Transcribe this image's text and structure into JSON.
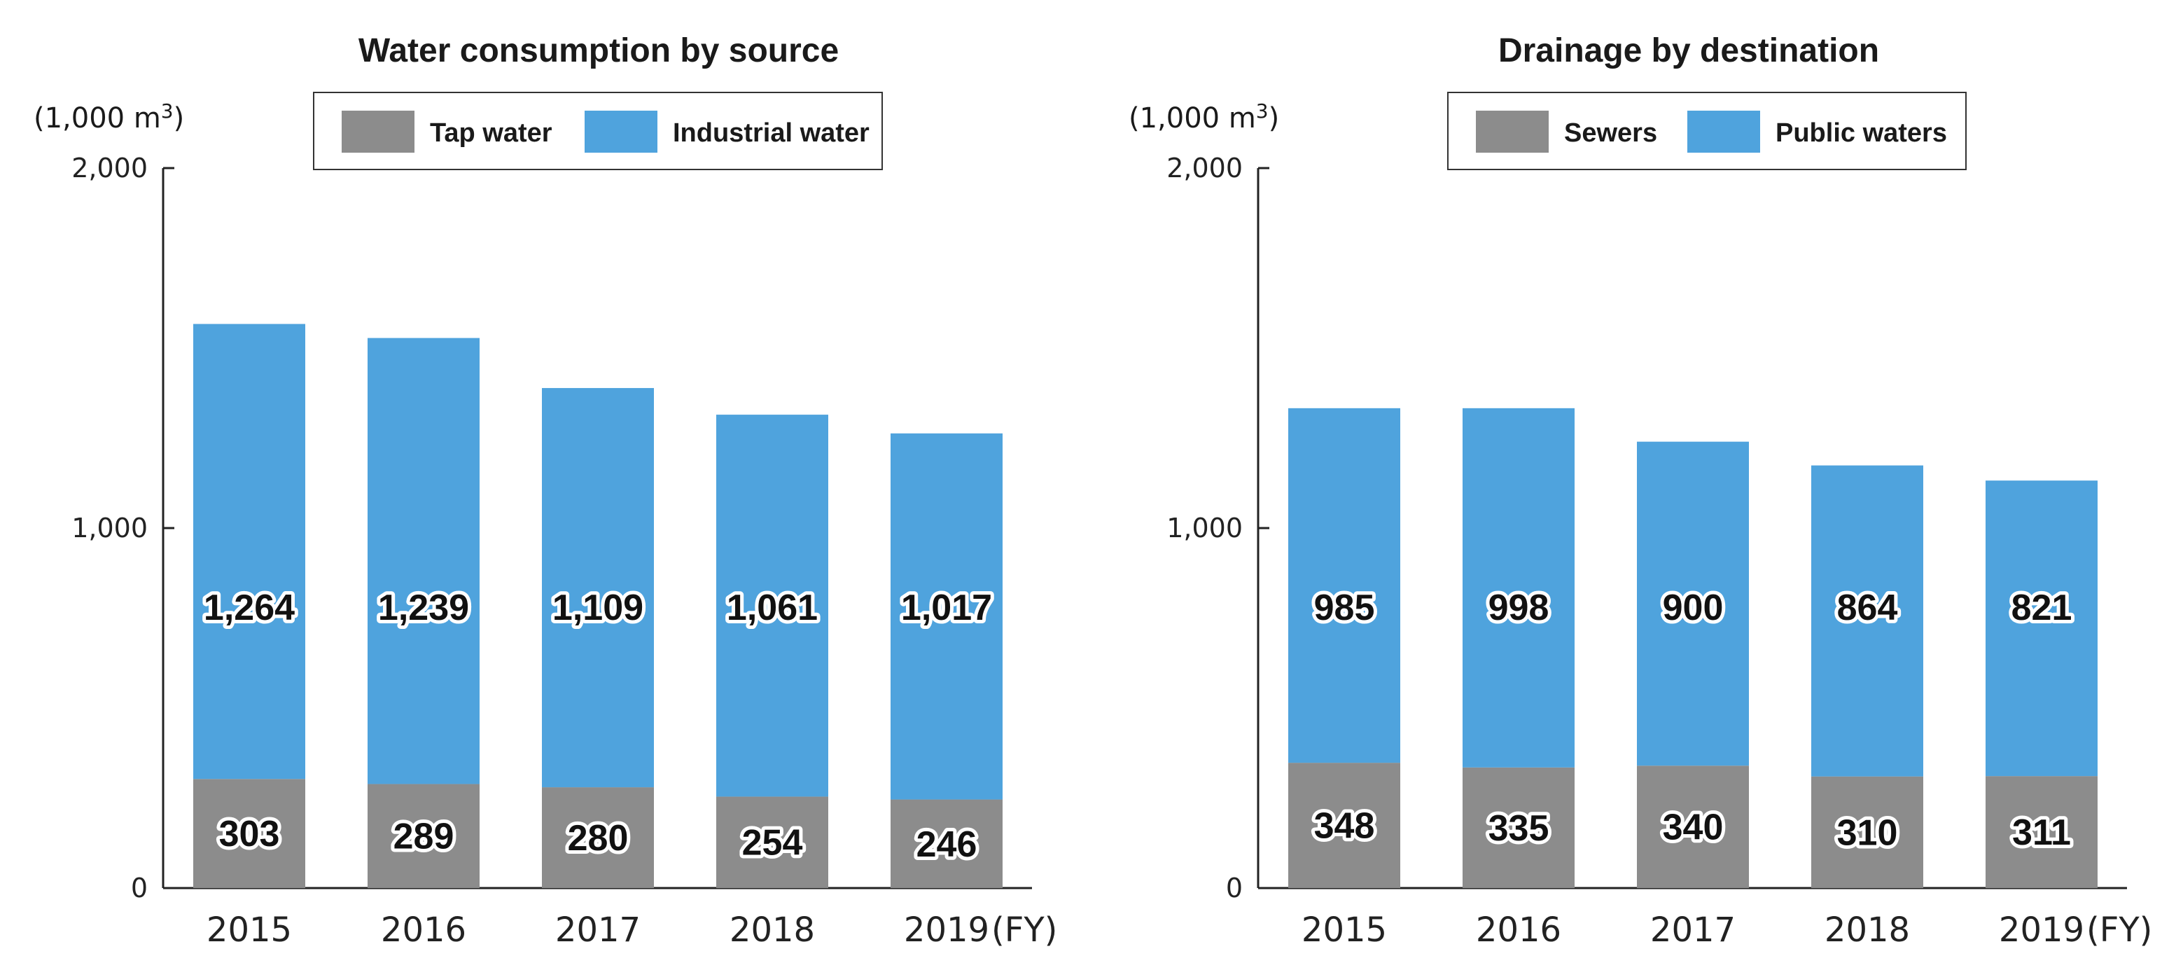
{
  "colors": {
    "bottom": "#8c8c8c",
    "top": "#4fa3dd",
    "axis": "#222222"
  },
  "chart_data": [
    {
      "type": "bar",
      "stacked": true,
      "title": "Water consumption by source",
      "unit_label": "(1,000 m",
      "unit_sup": "3",
      "unit_close": ")",
      "fy_label": "(FY)",
      "categories": [
        "2015",
        "2016",
        "2017",
        "2018",
        "2019"
      ],
      "yticks": [
        "0",
        "1,000",
        "2,000"
      ],
      "ylim": [
        0,
        2000
      ],
      "series": [
        {
          "name": "Tap water",
          "values": [
            303,
            289,
            280,
            254,
            246
          ],
          "labels": [
            "303",
            "289",
            "280",
            "254",
            "246"
          ]
        },
        {
          "name": "Industrial water",
          "values": [
            1264,
            1239,
            1109,
            1061,
            1017
          ],
          "labels": [
            "1,264",
            "1,239",
            "1,109",
            "1,061",
            "1,017"
          ]
        }
      ],
      "legend": "top"
    },
    {
      "type": "bar",
      "stacked": true,
      "title": "Drainage by destination",
      "unit_label": "(1,000 m",
      "unit_sup": "3",
      "unit_close": ")",
      "fy_label": "(FY)",
      "categories": [
        "2015",
        "2016",
        "2017",
        "2018",
        "2019"
      ],
      "yticks": [
        "0",
        "1,000",
        "2,000"
      ],
      "ylim": [
        0,
        2000
      ],
      "series": [
        {
          "name": "Sewers",
          "values": [
            348,
            335,
            340,
            310,
            311
          ],
          "labels": [
            "348",
            "335",
            "340",
            "310",
            "311"
          ]
        },
        {
          "name": "Public waters",
          "values": [
            985,
            998,
            900,
            864,
            821
          ],
          "labels": [
            "985",
            "998",
            "900",
            "864",
            "821"
          ]
        }
      ],
      "legend": "top"
    }
  ]
}
